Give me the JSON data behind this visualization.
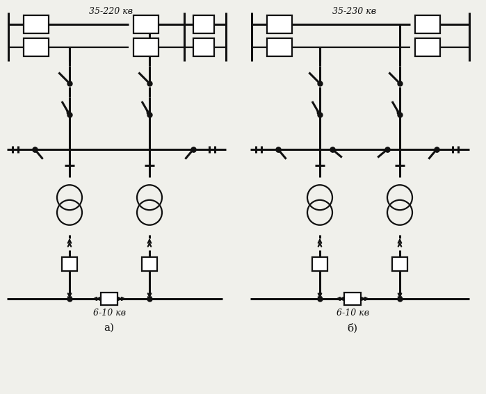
{
  "bg_color": "#f0f0eb",
  "line_color": "#111111",
  "title_a": "35-220 кв",
  "title_b": "35-230 кв",
  "label_a": "6-10 кв",
  "label_b": "6-10 кв",
  "sub_a": "а)",
  "sub_b": "б)",
  "fig_width": 6.99,
  "fig_height": 5.67,
  "dpi": 100,
  "lw": 1.6,
  "lw_thick": 2.2
}
